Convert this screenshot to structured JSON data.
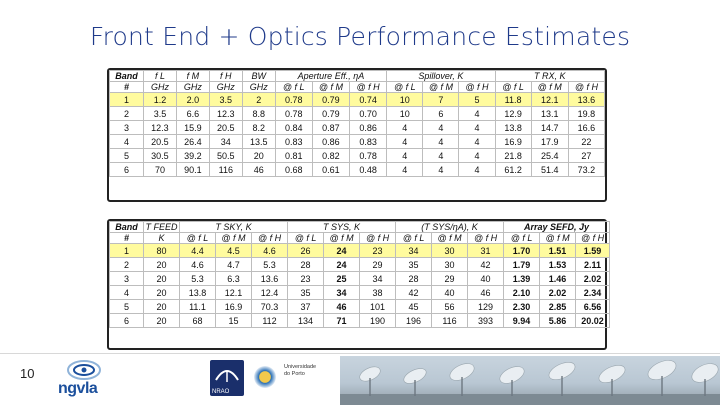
{
  "title": "Front End + Optics Performance Estimates",
  "page_number": "10",
  "footer": {
    "logo_text": "ngvla",
    "nrao_label": "NRAO",
    "univ_label_1": "Universidade",
    "univ_label_2": "do Porto"
  },
  "table1": {
    "h1": [
      "Band",
      "f L",
      "f M",
      "f H",
      "BW",
      "Aperture Eff., ηA",
      "Spillover, K",
      "T RX, K"
    ],
    "h2": [
      "#",
      "GHz",
      "GHz",
      "GHz",
      "GHz",
      "@ f L",
      "@ f M",
      "@ f H",
      "@ f L",
      "@ f M",
      "@ f H",
      "@ f L",
      "@ f M",
      "@ f H"
    ],
    "rows": [
      [
        "1",
        "1.2",
        "2.0",
        "3.5",
        "2",
        "0.78",
        "0.79",
        "0.74",
        "10",
        "7",
        "5",
        "11.8",
        "12.1",
        "13.6"
      ],
      [
        "2",
        "3.5",
        "6.6",
        "12.3",
        "8.8",
        "0.78",
        "0.79",
        "0.70",
        "10",
        "6",
        "4",
        "12.9",
        "13.1",
        "19.8"
      ],
      [
        "3",
        "12.3",
        "15.9",
        "20.5",
        "8.2",
        "0.84",
        "0.87",
        "0.86",
        "4",
        "4",
        "4",
        "13.8",
        "14.7",
        "16.6"
      ],
      [
        "4",
        "20.5",
        "26.4",
        "34",
        "13.5",
        "0.83",
        "0.86",
        "0.83",
        "4",
        "4",
        "4",
        "16.9",
        "17.9",
        "22"
      ],
      [
        "5",
        "30.5",
        "39.2",
        "50.5",
        "20",
        "0.81",
        "0.82",
        "0.78",
        "4",
        "4",
        "4",
        "21.8",
        "25.4",
        "27"
      ],
      [
        "6",
        "70",
        "90.1",
        "116",
        "46",
        "0.68",
        "0.61",
        "0.48",
        "4",
        "4",
        "4",
        "61.2",
        "51.4",
        "73.2"
      ]
    ]
  },
  "table2": {
    "h1": [
      "Band",
      "T FEED",
      "T SKY, K",
      "T SYS, K",
      "(T SYS/ηA), K",
      "Array SEFD, Jy"
    ],
    "h2": [
      "#",
      "K",
      "@ f L",
      "@ f M",
      "@ f H",
      "@ f L",
      "@ f M",
      "@ f H",
      "@ f L",
      "@ f M",
      "@ f H",
      "@ f L",
      "@ f M",
      "@ f H"
    ],
    "rows": [
      [
        "1",
        "80",
        "4.4",
        "4.5",
        "4.6",
        "26",
        "24",
        "23",
        "34",
        "30",
        "31",
        "1.70",
        "1.51",
        "1.59"
      ],
      [
        "2",
        "20",
        "4.6",
        "4.7",
        "5.3",
        "28",
        "24",
        "29",
        "35",
        "30",
        "42",
        "1.79",
        "1.53",
        "2.11"
      ],
      [
        "3",
        "20",
        "5.3",
        "6.3",
        "13.6",
        "23",
        "25",
        "34",
        "28",
        "29",
        "40",
        "1.39",
        "1.46",
        "2.02"
      ],
      [
        "4",
        "20",
        "13.8",
        "12.1",
        "12.4",
        "35",
        "34",
        "38",
        "42",
        "40",
        "46",
        "2.10",
        "2.02",
        "2.34"
      ],
      [
        "5",
        "20",
        "11.1",
        "16.9",
        "70.3",
        "37",
        "46",
        "101",
        "45",
        "56",
        "129",
        "2.30",
        "2.85",
        "6.56"
      ],
      [
        "6",
        "20",
        "68",
        "15",
        "112",
        "134",
        "71",
        "190",
        "196",
        "116",
        "393",
        "9.94",
        "5.86",
        "20.02"
      ]
    ]
  }
}
